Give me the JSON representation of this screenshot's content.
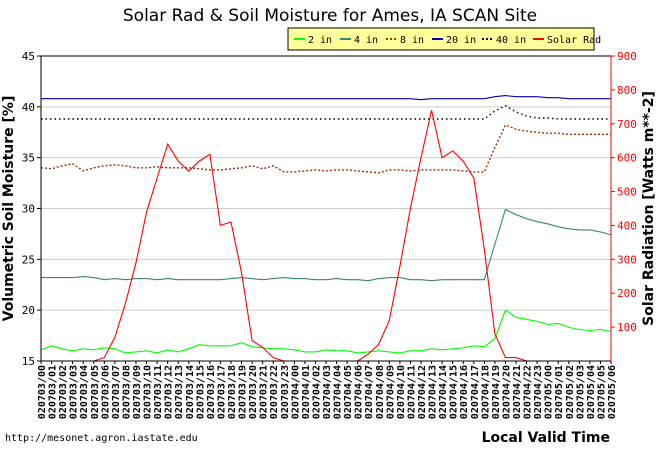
{
  "chart_data": {
    "type": "line",
    "title": "Solar Rad & Soil Moisture for Ames, IA SCAN Site",
    "xlabel": "Local Valid Time",
    "ylabel_left": "Volumetric Soil Moisture [%]",
    "ylabel_right": "Solar Radiation [Watts m**-2]",
    "ylim_left": [
      15,
      45
    ],
    "ylim_right": [
      0,
      900
    ],
    "yticks_left": [
      "15",
      "20",
      "25",
      "30",
      "35",
      "40",
      "45"
    ],
    "yticks_right": [
      "100",
      "200",
      "300",
      "400",
      "500",
      "600",
      "700",
      "800",
      "900"
    ],
    "grid": true,
    "legend_position": "top-right",
    "credit": "http://mesonet.agron.iastate.edu",
    "x_tick_labels": [
      "020703/00",
      "020703/01",
      "020703/02",
      "020703/03",
      "020703/04",
      "020703/05",
      "020703/06",
      "020703/07",
      "020703/08",
      "020703/09",
      "020703/10",
      "020703/11",
      "020703/12",
      "020703/13",
      "020703/14",
      "020703/15",
      "020703/16",
      "020703/17",
      "020703/18",
      "020703/19",
      "020703/20",
      "020703/21",
      "020703/22",
      "020703/23",
      "020704/00",
      "020704/01",
      "020704/02",
      "020704/03",
      "020704/04",
      "020704/05",
      "020704/06",
      "020704/07",
      "020704/08",
      "020704/09",
      "020704/10",
      "020704/11",
      "020704/12",
      "020704/13",
      "020704/14",
      "020704/15",
      "020704/16",
      "020704/17",
      "020704/18",
      "020704/19",
      "020704/20",
      "020704/21",
      "020704/22",
      "020704/23",
      "020705/00",
      "020705/01",
      "020705/02",
      "020705/03",
      "020705/04",
      "020705/05",
      "020705/06"
    ],
    "x": [
      0,
      1,
      2,
      3,
      4,
      5,
      6,
      7,
      8,
      9,
      10,
      11,
      12,
      13,
      14,
      15,
      16,
      17,
      18,
      19,
      20,
      21,
      22,
      23,
      24,
      25,
      26,
      27,
      28,
      29,
      30,
      31,
      32,
      33,
      34,
      35,
      36,
      37,
      38,
      39,
      40,
      41,
      42,
      43,
      44,
      45,
      46,
      47,
      48,
      49,
      50,
      51,
      52,
      53,
      54
    ],
    "series": [
      {
        "name": "2 in",
        "color": "#00ff00",
        "axis": "left",
        "style": "solid",
        "values": [
          16.1,
          16.5,
          16.2,
          16.0,
          16.2,
          16.1,
          16.3,
          16.2,
          15.8,
          15.9,
          16.0,
          15.8,
          16.1,
          15.9,
          16.2,
          16.6,
          16.5,
          16.5,
          16.5,
          16.8,
          16.4,
          16.3,
          16.2,
          16.2,
          16.1,
          15.9,
          15.9,
          16.1,
          16.0,
          16.0,
          15.8,
          15.9,
          16.0,
          15.9,
          15.8,
          16.0,
          16.0,
          16.2,
          16.1,
          16.2,
          16.3,
          16.5,
          16.4,
          17.2,
          20.0,
          19.3,
          19.1,
          18.9,
          18.6,
          18.7,
          18.3,
          18.1,
          18.0,
          18.1,
          17.9
        ]
      },
      {
        "name": "4 in",
        "color": "#338877",
        "axis": "left",
        "style": "solid",
        "values": [
          23.2,
          23.2,
          23.2,
          23.2,
          23.3,
          23.2,
          23.0,
          23.1,
          23.0,
          23.1,
          23.1,
          23.0,
          23.1,
          23.0,
          23.0,
          23.0,
          23.0,
          23.0,
          23.1,
          23.2,
          23.1,
          23.0,
          23.1,
          23.2,
          23.1,
          23.1,
          23.0,
          23.0,
          23.1,
          23.0,
          23.0,
          22.9,
          23.1,
          23.2,
          23.2,
          23.0,
          23.0,
          22.9,
          23.0,
          23.0,
          23.0,
          23.0,
          23.0,
          26.5,
          29.9,
          29.4,
          29.0,
          28.7,
          28.5,
          28.2,
          28.0,
          27.9,
          27.9,
          27.7,
          27.4
        ]
      },
      {
        "name": "8 in",
        "color": "#993300",
        "axis": "left",
        "style": "dotted",
        "values": [
          34.0,
          33.9,
          34.2,
          34.4,
          33.7,
          34.0,
          34.2,
          34.3,
          34.2,
          34.0,
          34.0,
          34.1,
          34.0,
          34.0,
          34.0,
          33.9,
          33.8,
          33.8,
          33.9,
          34.0,
          34.2,
          33.9,
          34.2,
          33.6,
          33.6,
          33.7,
          33.8,
          33.7,
          33.8,
          33.8,
          33.7,
          33.6,
          33.5,
          33.8,
          33.8,
          33.7,
          33.8,
          33.8,
          33.8,
          33.8,
          33.7,
          33.6,
          33.6,
          36.0,
          38.2,
          37.8,
          37.6,
          37.5,
          37.4,
          37.4,
          37.3,
          37.3,
          37.3,
          37.3,
          37.3
        ]
      },
      {
        "name": "20 in",
        "color": "#0000aa",
        "axis": "left",
        "style": "solid",
        "values": [
          40.8,
          40.8,
          40.8,
          40.8,
          40.8,
          40.8,
          40.8,
          40.8,
          40.8,
          40.8,
          40.8,
          40.8,
          40.8,
          40.8,
          40.8,
          40.8,
          40.8,
          40.8,
          40.8,
          40.8,
          40.8,
          40.8,
          40.8,
          40.8,
          40.8,
          40.8,
          40.8,
          40.8,
          40.8,
          40.8,
          40.8,
          40.8,
          40.8,
          40.8,
          40.8,
          40.8,
          40.7,
          40.8,
          40.8,
          40.8,
          40.8,
          40.8,
          40.8,
          41.0,
          41.1,
          41.0,
          41.0,
          41.0,
          40.9,
          40.9,
          40.8,
          40.8,
          40.8,
          40.8,
          40.8
        ]
      },
      {
        "name": "40 in",
        "color": "#000000",
        "axis": "left",
        "style": "dotted",
        "values": [
          38.8,
          38.8,
          38.8,
          38.8,
          38.8,
          38.8,
          38.8,
          38.8,
          38.8,
          38.8,
          38.8,
          38.8,
          38.8,
          38.8,
          38.8,
          38.8,
          38.8,
          38.8,
          38.8,
          38.8,
          38.8,
          38.8,
          38.8,
          38.8,
          38.8,
          38.8,
          38.8,
          38.8,
          38.8,
          38.8,
          38.8,
          38.8,
          38.8,
          38.8,
          38.8,
          38.8,
          38.8,
          38.8,
          38.8,
          38.8,
          38.8,
          38.8,
          38.8,
          39.6,
          40.1,
          39.5,
          39.1,
          38.9,
          38.9,
          38.8,
          38.8,
          38.8,
          38.8,
          38.8,
          38.8
        ]
      },
      {
        "name": "Solar Rad",
        "color": "#ff0000",
        "axis": "right",
        "style": "solid",
        "values": [
          0,
          0,
          0,
          0,
          0,
          0,
          10,
          70,
          170,
          290,
          440,
          540,
          640,
          590,
          560,
          590,
          610,
          400,
          410,
          260,
          60,
          40,
          10,
          0,
          0,
          0,
          0,
          0,
          0,
          0,
          0,
          20,
          50,
          120,
          280,
          450,
          600,
          740,
          600,
          620,
          590,
          540,
          330,
          80,
          10,
          10,
          0,
          0,
          null,
          null,
          null,
          null,
          null,
          null,
          null
        ]
      }
    ]
  }
}
